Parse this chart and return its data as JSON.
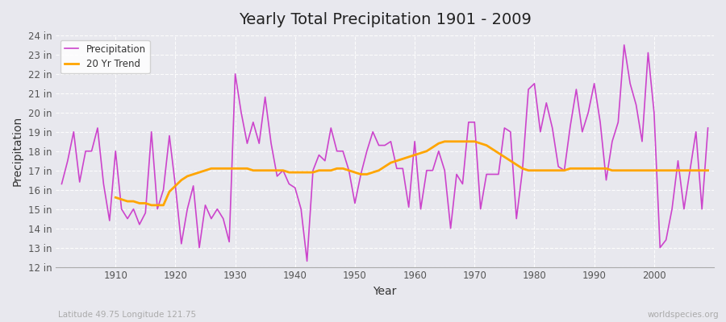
{
  "title": "Yearly Total Precipitation 1901 - 2009",
  "xlabel": "Year",
  "ylabel": "Precipitation",
  "subtitle": "Latitude 49.75 Longitude 121.75",
  "watermark": "worldspecies.org",
  "bg_color": "#e8e8ee",
  "plot_bg_color": "#e8e8ee",
  "precip_color": "#cc44cc",
  "trend_color": "#ffa500",
  "ylim": [
    12,
    24
  ],
  "yticks": [
    12,
    13,
    14,
    15,
    16,
    17,
    18,
    19,
    20,
    21,
    22,
    23,
    24
  ],
  "xticks": [
    1910,
    1920,
    1930,
    1940,
    1950,
    1960,
    1970,
    1980,
    1990,
    2000
  ],
  "years": [
    1901,
    1902,
    1903,
    1904,
    1905,
    1906,
    1907,
    1908,
    1909,
    1910,
    1911,
    1912,
    1913,
    1914,
    1915,
    1916,
    1917,
    1918,
    1919,
    1920,
    1921,
    1922,
    1923,
    1924,
    1925,
    1926,
    1927,
    1928,
    1929,
    1930,
    1931,
    1932,
    1933,
    1934,
    1935,
    1936,
    1937,
    1938,
    1939,
    1940,
    1941,
    1942,
    1943,
    1944,
    1945,
    1946,
    1947,
    1948,
    1949,
    1950,
    1951,
    1952,
    1953,
    1954,
    1955,
    1956,
    1957,
    1958,
    1959,
    1960,
    1961,
    1962,
    1963,
    1964,
    1965,
    1966,
    1967,
    1968,
    1969,
    1970,
    1971,
    1972,
    1973,
    1974,
    1975,
    1976,
    1977,
    1978,
    1979,
    1980,
    1981,
    1982,
    1983,
    1984,
    1985,
    1986,
    1987,
    1988,
    1989,
    1990,
    1991,
    1992,
    1993,
    1994,
    1995,
    1996,
    1997,
    1998,
    1999,
    2000,
    2001,
    2002,
    2003,
    2004,
    2005,
    2006,
    2007,
    2008,
    2009
  ],
  "precip": [
    16.3,
    17.5,
    19.0,
    16.4,
    18.0,
    18.0,
    19.2,
    16.3,
    14.4,
    18.0,
    15.0,
    14.5,
    15.0,
    14.2,
    14.8,
    19.0,
    15.0,
    16.0,
    18.8,
    16.2,
    13.2,
    15.0,
    16.2,
    13.0,
    15.2,
    14.5,
    15.0,
    14.5,
    13.3,
    22.0,
    20.0,
    18.4,
    19.5,
    18.4,
    20.8,
    18.4,
    16.7,
    17.0,
    16.3,
    16.1,
    15.0,
    12.3,
    17.0,
    17.8,
    17.5,
    19.2,
    18.0,
    18.0,
    17.0,
    15.3,
    16.8,
    18.0,
    19.0,
    18.3,
    18.3,
    18.5,
    17.1,
    17.1,
    15.1,
    18.5,
    15.0,
    17.0,
    17.0,
    18.0,
    17.0,
    14.0,
    16.8,
    16.3,
    19.5,
    19.5,
    15.0,
    16.8,
    16.8,
    16.8,
    19.2,
    19.0,
    14.5,
    17.0,
    21.2,
    21.5,
    19.0,
    20.5,
    19.2,
    17.2,
    17.0,
    19.3,
    21.2,
    19.0,
    20.0,
    21.5,
    19.5,
    16.5,
    18.5,
    19.5,
    23.5,
    21.5,
    20.4,
    18.5,
    23.1,
    20.0,
    13.0,
    13.4,
    15.0,
    17.5,
    15.0,
    17.0,
    19.0,
    15.0,
    19.2
  ],
  "trend_years": [
    1910,
    1911,
    1912,
    1913,
    1914,
    1915,
    1916,
    1917,
    1918,
    1919,
    1920,
    1921,
    1922,
    1923,
    1924,
    1925,
    1926,
    1927,
    1928,
    1929,
    1930,
    1931,
    1932,
    1933,
    1934,
    1935,
    1936,
    1937,
    1938,
    1939,
    1940,
    1941,
    1942,
    1943,
    1944,
    1945,
    1946,
    1947,
    1948,
    1949,
    1950,
    1951,
    1952,
    1953,
    1954,
    1955,
    1956,
    1957,
    1958,
    1959,
    1960,
    1961,
    1962,
    1963,
    1964,
    1965,
    1966,
    1967,
    1968,
    1969,
    1970,
    1971,
    1972,
    1973,
    1974,
    1975,
    1976,
    1977,
    1978,
    1979,
    1980,
    1981,
    1982,
    1983,
    1984,
    1985,
    1986,
    1987,
    1988,
    1989,
    1990,
    1991,
    1992,
    1993,
    1994,
    1995,
    1996,
    1997,
    1998,
    1999,
    2000,
    2001,
    2002,
    2003,
    2004,
    2005,
    2006,
    2007,
    2008,
    2009
  ],
  "trend": [
    15.6,
    15.5,
    15.4,
    15.4,
    15.3,
    15.3,
    15.2,
    15.2,
    15.2,
    15.9,
    16.2,
    16.5,
    16.7,
    16.8,
    16.9,
    17.0,
    17.1,
    17.1,
    17.1,
    17.1,
    17.1,
    17.1,
    17.1,
    17.0,
    17.0,
    17.0,
    17.0,
    17.0,
    17.0,
    16.9,
    16.9,
    16.9,
    16.9,
    16.9,
    17.0,
    17.0,
    17.0,
    17.1,
    17.1,
    17.0,
    16.9,
    16.8,
    16.8,
    16.9,
    17.0,
    17.2,
    17.4,
    17.5,
    17.6,
    17.7,
    17.8,
    17.9,
    18.0,
    18.2,
    18.4,
    18.5,
    18.5,
    18.5,
    18.5,
    18.5,
    18.5,
    18.4,
    18.3,
    18.1,
    17.9,
    17.7,
    17.5,
    17.3,
    17.1,
    17.0,
    17.0,
    17.0,
    17.0,
    17.0,
    17.0,
    17.0,
    17.1,
    17.1,
    17.1,
    17.1,
    17.1,
    17.1,
    17.1,
    17.0,
    17.0,
    17.0,
    17.0,
    17.0,
    17.0,
    17.0,
    17.0,
    17.0,
    17.0,
    17.0,
    17.0,
    17.0,
    17.0,
    17.0,
    17.0,
    17.0
  ]
}
